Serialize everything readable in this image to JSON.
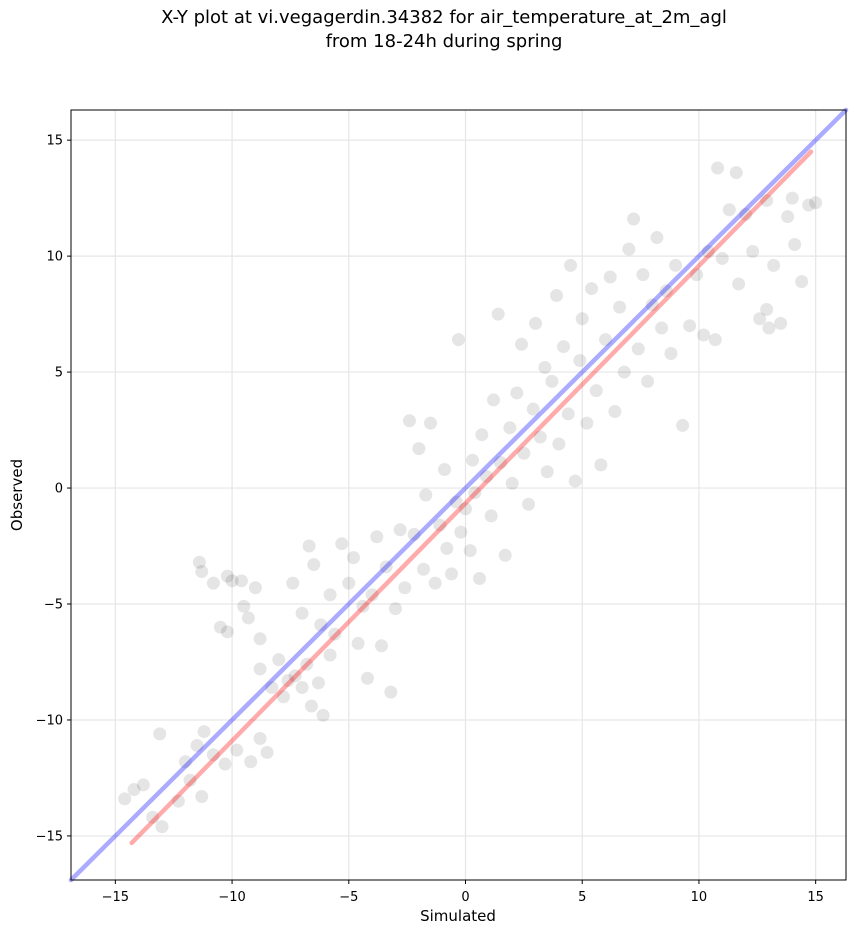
{
  "chart_data": {
    "type": "scatter",
    "title": "X-Y plot at vi.vegagerdin.34382 for air_temperature_at_2m_agl",
    "subtitle": "from 18-24h during spring",
    "xlabel": "Simulated",
    "ylabel": "Observed",
    "xlim": [
      -16.9,
      16.3
    ],
    "ylim": [
      -16.9,
      16.3
    ],
    "xticks": [
      -15,
      -10,
      -5,
      0,
      5,
      10,
      15
    ],
    "yticks": [
      -15,
      -10,
      -5,
      0,
      5,
      10,
      15
    ],
    "xtick_labels": [
      "−15",
      "−10",
      "−5",
      "0",
      "5",
      "10",
      "15"
    ],
    "ytick_labels": [
      "−15",
      "−10",
      "−5",
      "0",
      "5",
      "10",
      "15"
    ],
    "grid": true,
    "point_color": "#000000",
    "point_opacity": 0.1,
    "reference_lines": [
      {
        "kind": "one-to-one",
        "color": "#0000ff",
        "x": [
          -16.9,
          16.3
        ],
        "y": [
          -16.9,
          16.3
        ]
      },
      {
        "kind": "fit",
        "color": "#ff0000",
        "x": [
          -14.3,
          14.8
        ],
        "y": [
          -15.3,
          14.5
        ]
      }
    ],
    "points_sample": [
      [
        -14.6,
        -13.4
      ],
      [
        -14.2,
        -13.0
      ],
      [
        -13.8,
        -12.8
      ],
      [
        -13.4,
        -14.2
      ],
      [
        -13.0,
        -14.6
      ],
      [
        -13.1,
        -10.6
      ],
      [
        -12.3,
        -13.5
      ],
      [
        -12.0,
        -11.8
      ],
      [
        -11.8,
        -12.6
      ],
      [
        -11.5,
        -11.1
      ],
      [
        -11.3,
        -13.3
      ],
      [
        -11.2,
        -10.5
      ],
      [
        -11.4,
        -3.2
      ],
      [
        -11.3,
        -3.6
      ],
      [
        -10.8,
        -4.1
      ],
      [
        -10.5,
        -6.0
      ],
      [
        -10.2,
        -3.8
      ],
      [
        -10.0,
        -4.0
      ],
      [
        -10.2,
        -6.2
      ],
      [
        -9.6,
        -4.0
      ],
      [
        -9.5,
        -5.1
      ],
      [
        -9.3,
        -5.6
      ],
      [
        -9.0,
        -4.3
      ],
      [
        -8.8,
        -6.5
      ],
      [
        -10.8,
        -11.5
      ],
      [
        -10.3,
        -11.9
      ],
      [
        -9.8,
        -11.3
      ],
      [
        -9.2,
        -11.8
      ],
      [
        -8.8,
        -10.8
      ],
      [
        -8.5,
        -11.4
      ],
      [
        -8.8,
        -7.8
      ],
      [
        -8.3,
        -8.6
      ],
      [
        -8.0,
        -7.4
      ],
      [
        -7.8,
        -9.0
      ],
      [
        -7.6,
        -8.3
      ],
      [
        -7.3,
        -8.1
      ],
      [
        -7.0,
        -8.6
      ],
      [
        -6.8,
        -7.6
      ],
      [
        -6.6,
        -9.4
      ],
      [
        -6.3,
        -8.4
      ],
      [
        -6.1,
        -9.8
      ],
      [
        -5.8,
        -7.2
      ],
      [
        -7.4,
        -4.1
      ],
      [
        -7.0,
        -5.4
      ],
      [
        -6.7,
        -2.5
      ],
      [
        -6.5,
        -3.3
      ],
      [
        -6.2,
        -5.9
      ],
      [
        -5.8,
        -4.6
      ],
      [
        -5.6,
        -6.3
      ],
      [
        -5.3,
        -2.4
      ],
      [
        -5.0,
        -4.1
      ],
      [
        -4.8,
        -3.0
      ],
      [
        -4.6,
        -6.7
      ],
      [
        -4.4,
        -5.1
      ],
      [
        -4.2,
        -8.2
      ],
      [
        -4.0,
        -4.6
      ],
      [
        -3.8,
        -2.1
      ],
      [
        -3.6,
        -6.8
      ],
      [
        -3.4,
        -3.4
      ],
      [
        -3.2,
        -8.8
      ],
      [
        -3.0,
        -5.2
      ],
      [
        -2.8,
        -1.8
      ],
      [
        -2.6,
        -4.3
      ],
      [
        -2.4,
        2.9
      ],
      [
        -2.2,
        -2.0
      ],
      [
        -2.0,
        1.7
      ],
      [
        -1.8,
        -3.5
      ],
      [
        -1.7,
        -0.3
      ],
      [
        -1.5,
        2.8
      ],
      [
        -1.3,
        -4.1
      ],
      [
        -1.1,
        -1.6
      ],
      [
        -0.9,
        0.8
      ],
      [
        -0.8,
        -2.6
      ],
      [
        -0.6,
        -3.7
      ],
      [
        -0.4,
        -0.6
      ],
      [
        -0.3,
        6.4
      ],
      [
        -0.2,
        -1.9
      ],
      [
        0.0,
        -0.9
      ],
      [
        0.2,
        -2.7
      ],
      [
        0.3,
        1.2
      ],
      [
        0.4,
        -0.2
      ],
      [
        0.6,
        -3.9
      ],
      [
        0.7,
        2.3
      ],
      [
        0.9,
        0.5
      ],
      [
        1.1,
        -1.2
      ],
      [
        1.2,
        3.8
      ],
      [
        1.4,
        7.5
      ],
      [
        1.5,
        1.1
      ],
      [
        1.7,
        -2.9
      ],
      [
        1.9,
        2.6
      ],
      [
        2.0,
        0.2
      ],
      [
        2.2,
        4.1
      ],
      [
        2.4,
        6.2
      ],
      [
        2.5,
        1.5
      ],
      [
        2.7,
        -0.7
      ],
      [
        2.9,
        3.4
      ],
      [
        3.0,
        7.1
      ],
      [
        3.2,
        2.2
      ],
      [
        3.4,
        5.2
      ],
      [
        3.5,
        0.7
      ],
      [
        3.7,
        4.6
      ],
      [
        3.9,
        8.3
      ],
      [
        4.0,
        1.9
      ],
      [
        4.2,
        6.1
      ],
      [
        4.4,
        3.2
      ],
      [
        4.5,
        9.6
      ],
      [
        4.7,
        0.3
      ],
      [
        4.9,
        5.5
      ],
      [
        5.0,
        7.3
      ],
      [
        5.2,
        2.8
      ],
      [
        5.4,
        8.6
      ],
      [
        5.6,
        4.2
      ],
      [
        5.8,
        1.0
      ],
      [
        6.0,
        6.4
      ],
      [
        6.2,
        9.1
      ],
      [
        6.4,
        3.3
      ],
      [
        6.6,
        7.8
      ],
      [
        6.8,
        5.0
      ],
      [
        7.0,
        10.3
      ],
      [
        7.2,
        11.6
      ],
      [
        7.4,
        6.0
      ],
      [
        7.6,
        9.2
      ],
      [
        7.8,
        4.6
      ],
      [
        8.0,
        7.9
      ],
      [
        8.2,
        10.8
      ],
      [
        8.4,
        6.9
      ],
      [
        8.6,
        8.5
      ],
      [
        8.8,
        5.8
      ],
      [
        9.0,
        9.6
      ],
      [
        9.3,
        2.7
      ],
      [
        9.6,
        7.0
      ],
      [
        9.9,
        9.2
      ],
      [
        10.2,
        6.6
      ],
      [
        10.4,
        10.2
      ],
      [
        10.7,
        6.4
      ],
      [
        11.0,
        9.9
      ],
      [
        11.3,
        12.0
      ],
      [
        11.7,
        8.8
      ],
      [
        12.0,
        11.8
      ],
      [
        12.3,
        10.2
      ],
      [
        12.6,
        7.3
      ],
      [
        12.9,
        12.4
      ],
      [
        13.2,
        9.6
      ],
      [
        13.5,
        7.1
      ],
      [
        13.8,
        11.7
      ],
      [
        14.1,
        10.5
      ],
      [
        14.4,
        8.9
      ],
      [
        14.7,
        12.2
      ],
      [
        15.0,
        12.3
      ],
      [
        10.8,
        13.8
      ],
      [
        11.6,
        13.6
      ],
      [
        12.9,
        7.7
      ],
      [
        13.0,
        6.9
      ],
      [
        14.0,
        12.5
      ]
    ]
  }
}
